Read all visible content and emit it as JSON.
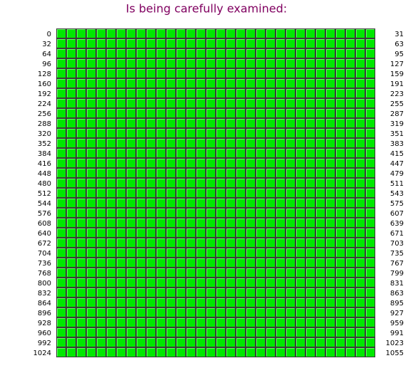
{
  "title": "Is being carefully examined:",
  "rows": [
    {
      "start": 0,
      "end": 31
    },
    {
      "start": 32,
      "end": 63
    },
    {
      "start": 64,
      "end": 95
    },
    {
      "start": 96,
      "end": 127
    },
    {
      "start": 128,
      "end": 159
    },
    {
      "start": 160,
      "end": 191
    },
    {
      "start": 192,
      "end": 223
    },
    {
      "start": 224,
      "end": 255
    },
    {
      "start": 256,
      "end": 287
    },
    {
      "start": 288,
      "end": 319
    },
    {
      "start": 320,
      "end": 351
    },
    {
      "start": 352,
      "end": 383
    },
    {
      "start": 384,
      "end": 415
    },
    {
      "start": 416,
      "end": 447
    },
    {
      "start": 448,
      "end": 479
    },
    {
      "start": 480,
      "end": 511
    },
    {
      "start": 512,
      "end": 543
    },
    {
      "start": 544,
      "end": 575
    },
    {
      "start": 576,
      "end": 607
    },
    {
      "start": 608,
      "end": 639
    },
    {
      "start": 640,
      "end": 671
    },
    {
      "start": 672,
      "end": 703
    },
    {
      "start": 704,
      "end": 735
    },
    {
      "start": 736,
      "end": 767
    },
    {
      "start": 768,
      "end": 799
    },
    {
      "start": 800,
      "end": 831
    },
    {
      "start": 832,
      "end": 863
    },
    {
      "start": 864,
      "end": 895
    },
    {
      "start": 896,
      "end": 927
    },
    {
      "start": 928,
      "end": 959
    },
    {
      "start": 960,
      "end": 991
    },
    {
      "start": 992,
      "end": 1023
    },
    {
      "start": 1024,
      "end": 1055
    }
  ]
}
